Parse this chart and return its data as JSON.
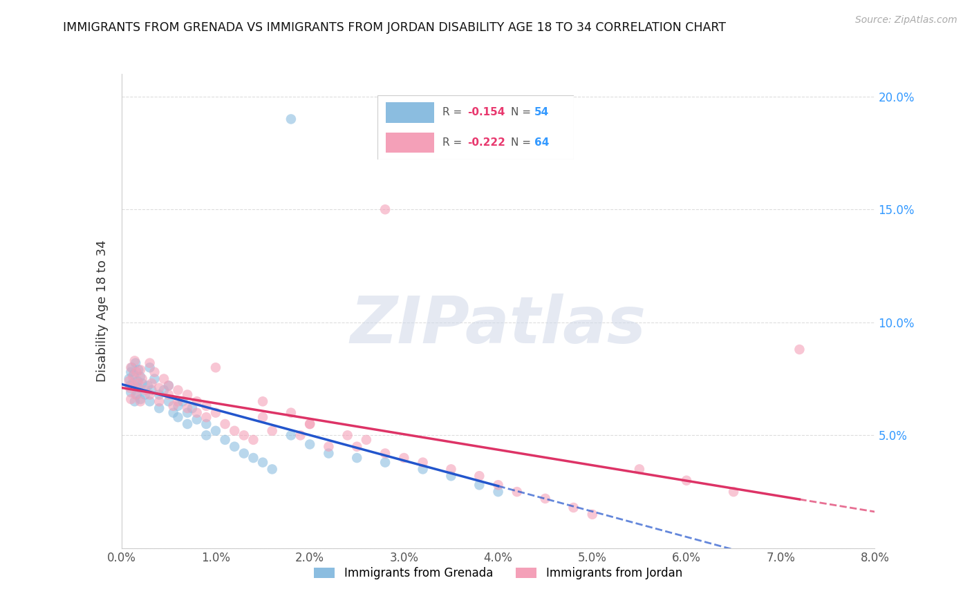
{
  "title": "IMMIGRANTS FROM GRENADA VS IMMIGRANTS FROM JORDAN DISABILITY AGE 18 TO 34 CORRELATION CHART",
  "source": "Source: ZipAtlas.com",
  "ylabel": "Disability Age 18 to 34",
  "xlim": [
    0.0,
    0.08
  ],
  "ylim": [
    0.0,
    0.21
  ],
  "xtick_vals": [
    0.0,
    0.01,
    0.02,
    0.03,
    0.04,
    0.05,
    0.06,
    0.07,
    0.08
  ],
  "xtick_labels": [
    "0.0%",
    "1.0%",
    "2.0%",
    "3.0%",
    "4.0%",
    "5.0%",
    "6.0%",
    "7.0%",
    "8.0%"
  ],
  "ytick_vals": [
    0.0,
    0.05,
    0.1,
    0.15,
    0.2
  ],
  "ytick_labels": [
    "",
    "5.0%",
    "10.0%",
    "15.0%",
    "20.0%"
  ],
  "R_grenada": -0.154,
  "N_grenada": 54,
  "R_jordan": -0.222,
  "N_jordan": 64,
  "color_grenada": "#8bbde0",
  "color_jordan": "#f4a0b8",
  "color_trend_grenada": "#2255cc",
  "color_trend_jordan": "#dd3366",
  "legend1_label": "Immigrants from Grenada",
  "legend2_label": "Immigrants from Jordan",
  "watermark": "ZIPatlas",
  "grenada_x": [
    0.0008,
    0.0009,
    0.001,
    0.001,
    0.0011,
    0.0012,
    0.0013,
    0.0014,
    0.0015,
    0.0016,
    0.0017,
    0.0018,
    0.0018,
    0.002,
    0.002,
    0.0022,
    0.0025,
    0.0028,
    0.003,
    0.003,
    0.0032,
    0.0035,
    0.004,
    0.004,
    0.0045,
    0.005,
    0.005,
    0.0055,
    0.006,
    0.006,
    0.0065,
    0.007,
    0.007,
    0.0075,
    0.008,
    0.009,
    0.009,
    0.01,
    0.011,
    0.012,
    0.013,
    0.014,
    0.015,
    0.016,
    0.018,
    0.02,
    0.022,
    0.025,
    0.028,
    0.032,
    0.035,
    0.038,
    0.04,
    0.018
  ],
  "grenada_y": [
    0.075,
    0.072,
    0.078,
    0.069,
    0.08,
    0.073,
    0.077,
    0.065,
    0.082,
    0.068,
    0.074,
    0.079,
    0.071,
    0.076,
    0.066,
    0.073,
    0.068,
    0.072,
    0.08,
    0.065,
    0.07,
    0.075,
    0.068,
    0.062,
    0.07,
    0.065,
    0.072,
    0.06,
    0.063,
    0.058,
    0.065,
    0.06,
    0.055,
    0.062,
    0.057,
    0.055,
    0.05,
    0.052,
    0.048,
    0.045,
    0.042,
    0.04,
    0.038,
    0.035,
    0.05,
    0.046,
    0.042,
    0.04,
    0.038,
    0.035,
    0.032,
    0.028,
    0.025,
    0.19
  ],
  "jordan_x": [
    0.0008,
    0.0009,
    0.001,
    0.001,
    0.0012,
    0.0013,
    0.0014,
    0.0015,
    0.0016,
    0.0018,
    0.002,
    0.002,
    0.0022,
    0.0025,
    0.003,
    0.003,
    0.0032,
    0.0035,
    0.004,
    0.004,
    0.0045,
    0.005,
    0.005,
    0.0055,
    0.006,
    0.006,
    0.007,
    0.007,
    0.008,
    0.008,
    0.009,
    0.009,
    0.01,
    0.011,
    0.012,
    0.013,
    0.014,
    0.015,
    0.016,
    0.018,
    0.019,
    0.02,
    0.022,
    0.024,
    0.025,
    0.026,
    0.028,
    0.03,
    0.032,
    0.035,
    0.038,
    0.04,
    0.042,
    0.045,
    0.048,
    0.05,
    0.055,
    0.06,
    0.065,
    0.072,
    0.028,
    0.01,
    0.015,
    0.02
  ],
  "jordan_y": [
    0.074,
    0.071,
    0.08,
    0.066,
    0.076,
    0.072,
    0.083,
    0.068,
    0.078,
    0.073,
    0.079,
    0.065,
    0.075,
    0.07,
    0.082,
    0.068,
    0.073,
    0.078,
    0.071,
    0.065,
    0.075,
    0.068,
    0.072,
    0.063,
    0.07,
    0.065,
    0.068,
    0.062,
    0.065,
    0.06,
    0.063,
    0.058,
    0.06,
    0.055,
    0.052,
    0.05,
    0.048,
    0.058,
    0.052,
    0.06,
    0.05,
    0.055,
    0.045,
    0.05,
    0.045,
    0.048,
    0.042,
    0.04,
    0.038,
    0.035,
    0.032,
    0.028,
    0.025,
    0.022,
    0.018,
    0.015,
    0.035,
    0.03,
    0.025,
    0.088,
    0.15,
    0.08,
    0.065,
    0.055
  ]
}
